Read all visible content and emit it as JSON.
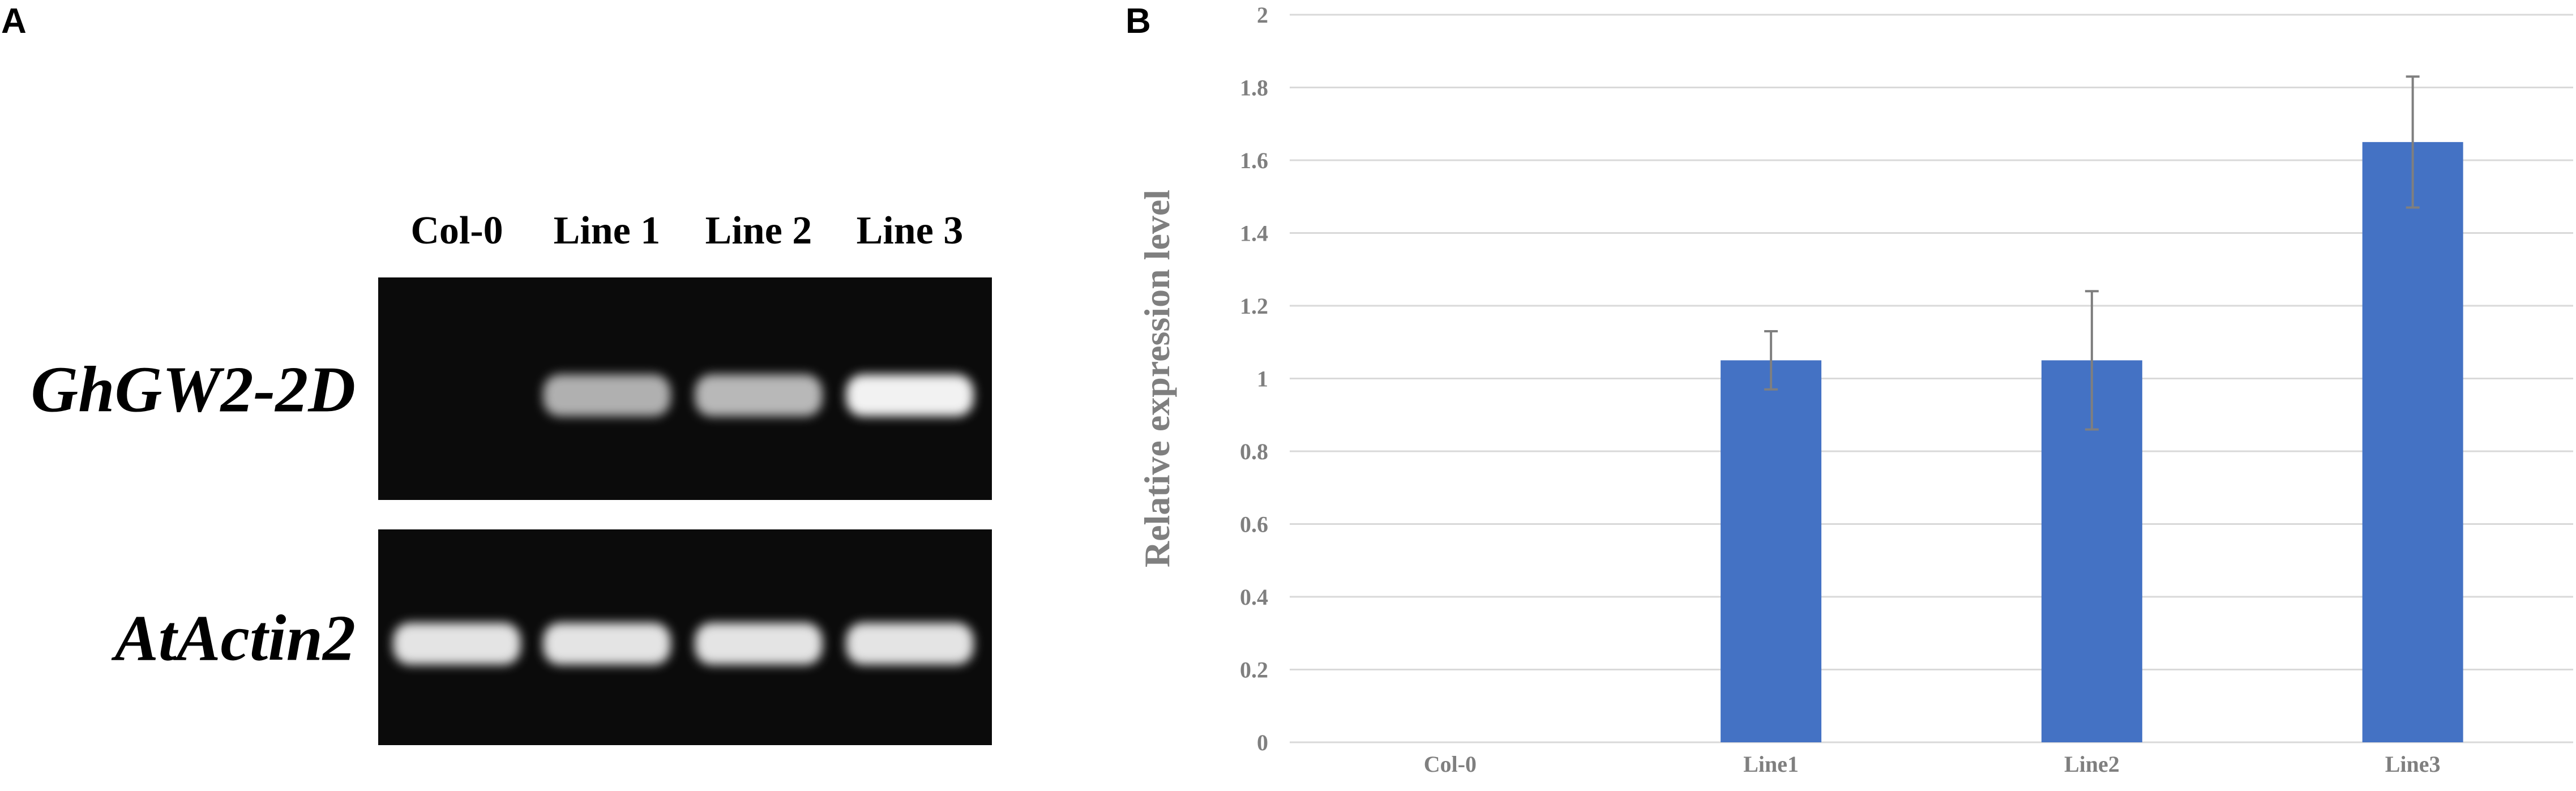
{
  "panels": {
    "a_label": "A",
    "b_label": "B"
  },
  "gel": {
    "lanes": [
      "Col-0",
      "Line 1",
      "Line 2",
      "Line 3"
    ],
    "genes": [
      {
        "name": "GhGW2-2D",
        "band_intensity": [
          0,
          0.55,
          0.6,
          1.0
        ]
      },
      {
        "name": "AtActin2",
        "band_intensity": [
          0.9,
          0.9,
          0.9,
          0.9
        ]
      }
    ],
    "background_color": "#0b0b0b",
    "band_color": "#ffffff"
  },
  "chart_data": {
    "type": "bar",
    "categories": [
      "Col-0",
      "Line1",
      "Line2",
      "Line3"
    ],
    "values": [
      0,
      1.05,
      1.05,
      1.65
    ],
    "error": [
      0,
      0.08,
      0.19,
      0.18
    ],
    "ylabel": "Relative expression level",
    "ylim": [
      0,
      2
    ],
    "yticks": [
      "0",
      "0.2",
      "0.4",
      "0.6",
      "0.8",
      "1",
      "1.2",
      "1.4",
      "1.6",
      "1.8",
      "2"
    ],
    "grid": true,
    "bar_color": "#4472c4",
    "error_color": "#7f7f7f",
    "gridline_color": "#d9d9d9",
    "text_color": "#7f7f7f"
  }
}
